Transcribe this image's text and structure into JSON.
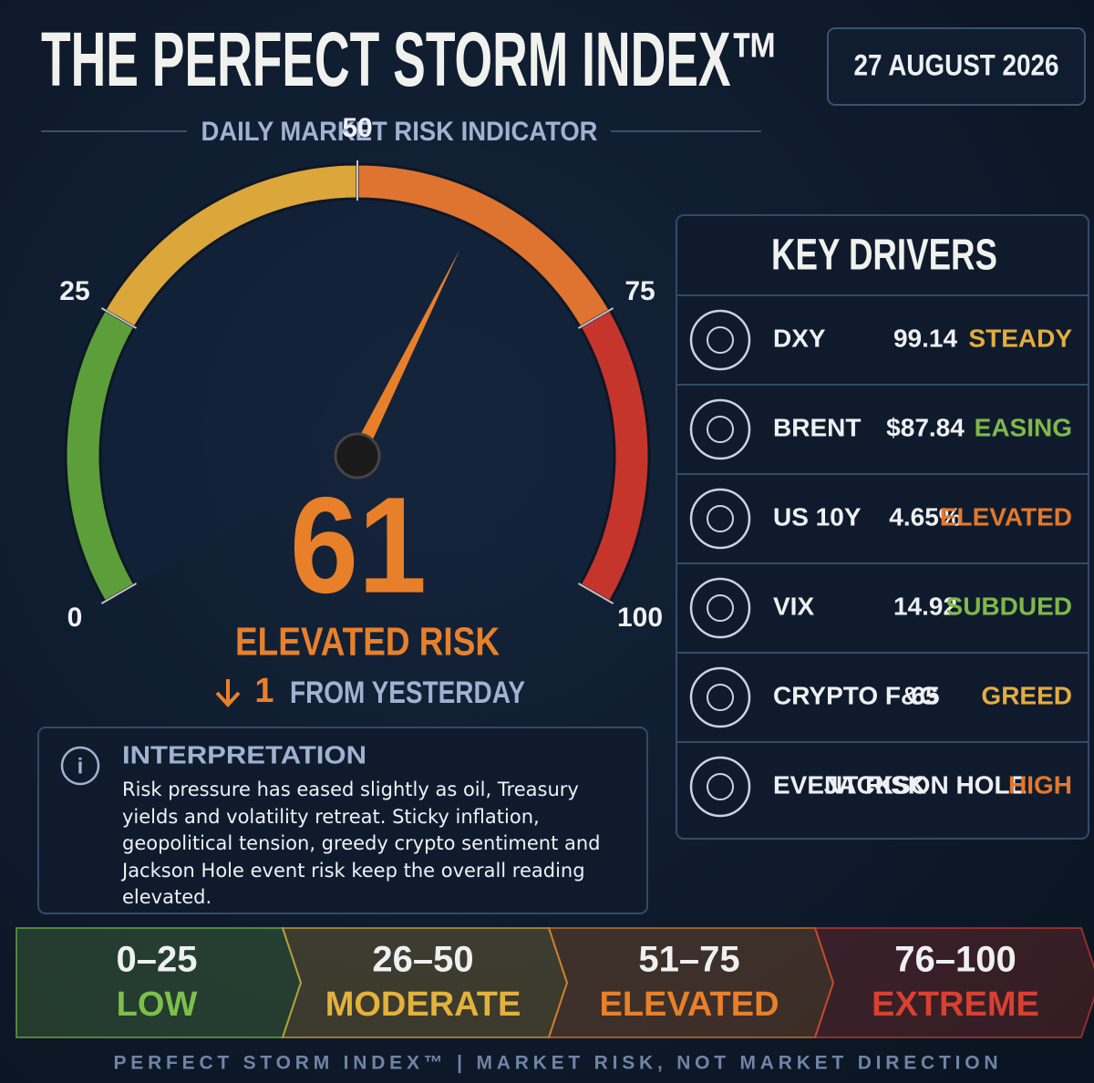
{
  "header": {
    "title": "THE PERFECT STORM INDEX™",
    "subtitle": "DAILY MARKET RISK INDICATOR",
    "date": "27 AUGUST 2026"
  },
  "chart_data": {
    "type": "gauge",
    "value": 61,
    "color": "#e8802a",
    "label": "ELEVATED RISK",
    "change": 1,
    "change_text": "FROM YESTERDAY",
    "ylim": [
      0,
      100
    ],
    "yticks": [
      0,
      25,
      50,
      75,
      100
    ],
    "bands": [
      {
        "color": "#5c9e3a"
      },
      {
        "color": "#dba63a"
      },
      {
        "color": "#df7430"
      },
      {
        "color": "#c5352c"
      }
    ]
  },
  "interpretation": {
    "title": "INTERPRETATION",
    "text": "Risk pressure has eased slightly as oil, Treasury yields and volatility retreat. Sticky inflation, geopolitical tension, greedy crypto sentiment and Jackson Hole event risk keep the overall reading elevated."
  },
  "key_drivers": {
    "title": "KEY DRIVERS",
    "rows": [
      {
        "name": "DXY",
        "value": "99.14",
        "status": "STEADY",
        "color": "#e3ad3e"
      },
      {
        "name": "BRENT",
        "value": "$87.84",
        "status": "EASING",
        "color": "#7fb84a"
      },
      {
        "name": "US 10Y",
        "value": "4.65%",
        "status": "ELEVATED",
        "color": "#e3782c"
      },
      {
        "name": "VIX",
        "value": "14.92",
        "status": "SUBDUED",
        "color": "#7fb84a"
      },
      {
        "name": "CRYPTO F&G",
        "value": "65",
        "status": "GREED",
        "color": "#e3ad3e"
      },
      {
        "name": "EVENT RISK",
        "value": "JACKSON HOLE",
        "status": "HIGH",
        "color": "#e3782c"
      }
    ]
  },
  "scale": [
    {
      "range": "0–25",
      "label": "LOW",
      "color": "#7cc04a"
    },
    {
      "range": "26–50",
      "label": "MODERATE",
      "color": "#e3b23c"
    },
    {
      "range": "51–75",
      "label": "ELEVATED",
      "color": "#e8802a"
    },
    {
      "range": "76–100",
      "label": "EXTREME",
      "color": "#d8402f"
    }
  ],
  "footer": "PERFECT STORM INDEX™  |  MARKET RISK, NOT MARKET DIRECTION"
}
